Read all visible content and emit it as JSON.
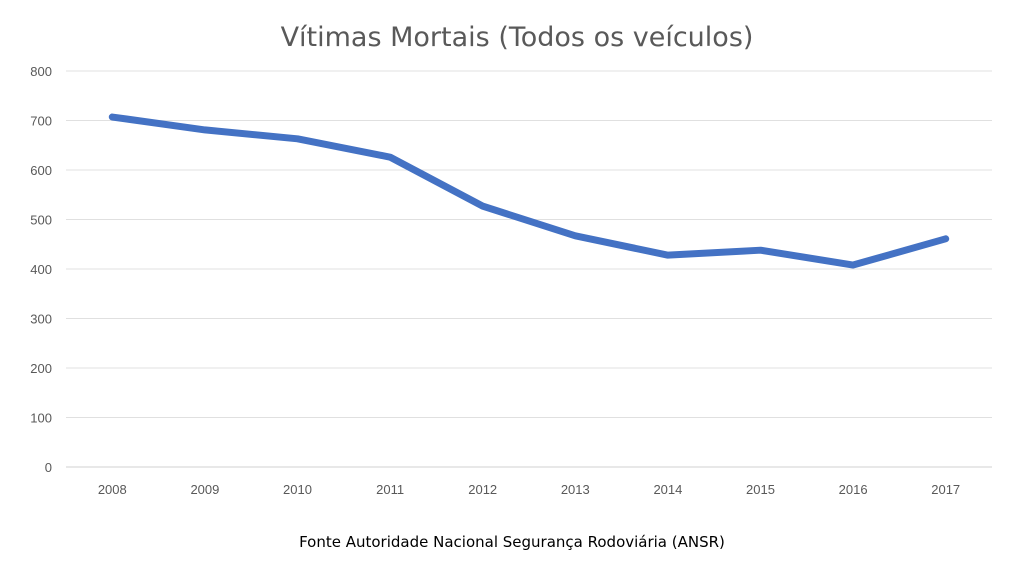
{
  "chart_data": {
    "type": "line",
    "title": "Vítimas Mortais (Todos os veículos)",
    "xlabel": "",
    "ylabel": "",
    "categories": [
      "2008",
      "2009",
      "2010",
      "2011",
      "2012",
      "2013",
      "2014",
      "2015",
      "2016",
      "2017"
    ],
    "series": [
      {
        "name": "Vítimas Mortais",
        "values": [
          707,
          681,
          663,
          626,
          527,
          467,
          428,
          438,
          408,
          461
        ],
        "color": "#4472C4"
      }
    ],
    "ylim": [
      0,
      800
    ],
    "yticks": [
      0,
      100,
      200,
      300,
      400,
      500,
      600,
      700,
      800
    ],
    "grid": true,
    "legend": "none"
  },
  "source": "Fonte Autoridade Nacional Segurança Rodoviária (ANSR)"
}
